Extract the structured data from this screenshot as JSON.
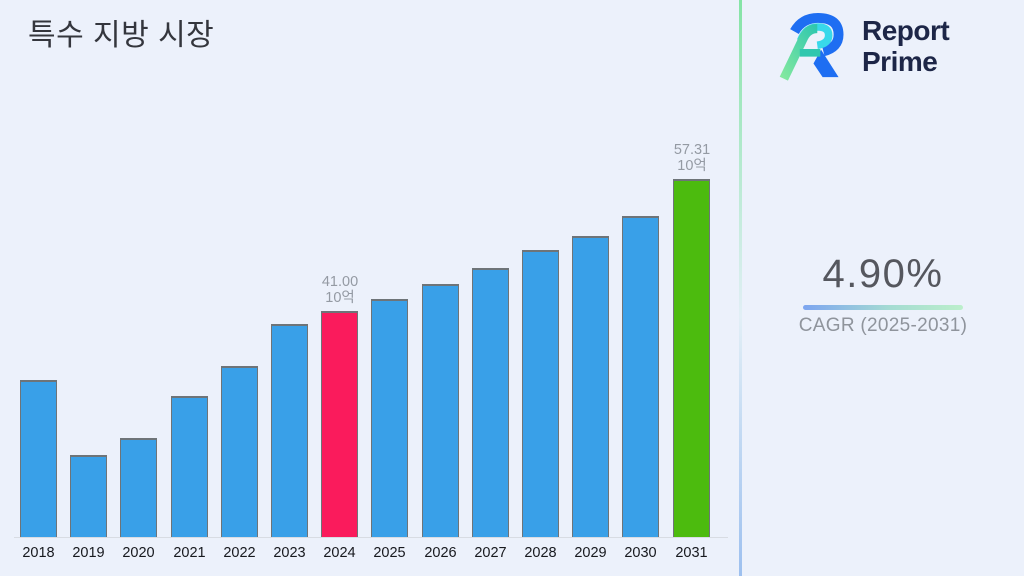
{
  "page": {
    "background": "#ECF1FB",
    "divider_gradient": [
      "#84E4A5",
      "#E2EFF6",
      "#9DC0EF"
    ]
  },
  "title": "특수 지방 시장",
  "brand": {
    "line1": "Report",
    "line2": "Prime",
    "text_color": "#1D2647",
    "logo_blue": "#1E6EF2",
    "logo_cyan": "#38D8EA",
    "logo_green_light": "#83E89F",
    "logo_green_teal": "#2FC7AE"
  },
  "cagr": {
    "value": "4.90%",
    "caption": "CAGR (2025-2031)",
    "value_color": "#55575E",
    "caption_color": "#8F949C",
    "underline_gradient": [
      "#7DA5F0",
      "#A5DCD2",
      "#BCEFCB"
    ]
  },
  "chart_data": {
    "type": "bar",
    "title": "특수 지방 시장",
    "xlabel": "",
    "ylabel": "",
    "unit": "10억",
    "categories": [
      "2018",
      "2019",
      "2020",
      "2021",
      "2022",
      "2023",
      "2024",
      "2025",
      "2026",
      "2027",
      "2028",
      "2029",
      "2030",
      "2031"
    ],
    "values": [
      32.4,
      23.1,
      25.3,
      30.5,
      34.2,
      39.4,
      41.0,
      42.4,
      44.3,
      46.3,
      48.5,
      50.3,
      52.7,
      57.31
    ],
    "value_labels": [
      {
        "category": "2024",
        "value_text": "41.00",
        "unit_text": "10억"
      },
      {
        "category": "2031",
        "value_text": "57.31",
        "unit_text": "10억"
      }
    ],
    "bar_colors": {
      "default": "#39A0E8",
      "2024": "#FA1B5C",
      "2031": "#4CBB0E"
    },
    "bar_border_color": "#6E7478",
    "axis_line_color": "#D8DCE3",
    "label_color": "#949AA3",
    "tick_color": "#17191E",
    "ylim": [
      13,
      62
    ],
    "grid": false,
    "legend": false
  }
}
